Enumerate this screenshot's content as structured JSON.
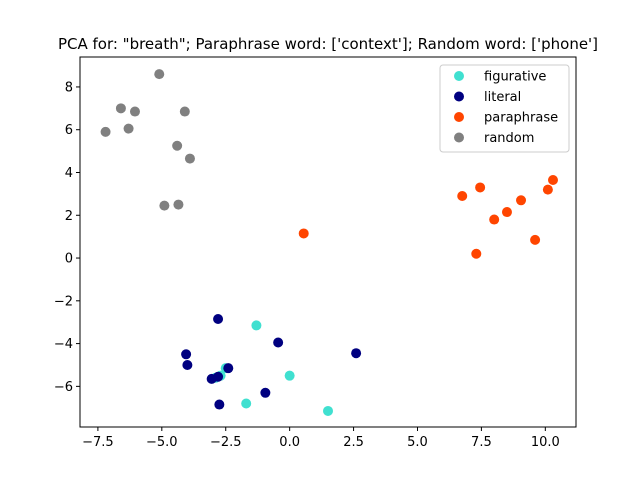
{
  "chart_data": {
    "type": "scatter",
    "title": "PCA for: \"breath\"; Paraphrase word: ['context']; Random word: ['phone']",
    "xlabel": "",
    "ylabel": "",
    "xlim": [
      -8.2,
      11.2
    ],
    "ylim": [
      -7.9,
      9.4
    ],
    "xticks": [
      -7.5,
      -5.0,
      -2.5,
      0.0,
      2.5,
      5.0,
      7.5,
      10.0
    ],
    "xtick_labels": [
      "−7.5",
      "−5.0",
      "−2.5",
      "0.0",
      "2.5",
      "5.0",
      "7.5",
      "10.0"
    ],
    "yticks": [
      -6,
      -4,
      -2,
      0,
      2,
      4,
      6,
      8
    ],
    "ytick_labels": [
      "−6",
      "−4",
      "−2",
      "0",
      "2",
      "4",
      "6",
      "8"
    ],
    "grid": false,
    "legend_position": "top-right",
    "series": [
      {
        "name": "figurative",
        "color": "#40e0d0",
        "points": [
          [
            -1.3,
            -3.15
          ],
          [
            0.0,
            -5.5
          ],
          [
            -1.7,
            -6.8
          ],
          [
            1.5,
            -7.15
          ],
          [
            -2.7,
            -5.5
          ],
          [
            -2.9,
            -5.6
          ],
          [
            -2.5,
            -5.15
          ]
        ]
      },
      {
        "name": "literal",
        "color": "#000080",
        "points": [
          [
            -2.8,
            -2.85
          ],
          [
            -0.45,
            -3.95
          ],
          [
            2.6,
            -4.45
          ],
          [
            -4.05,
            -4.5
          ],
          [
            -4.0,
            -5.0
          ],
          [
            -2.4,
            -5.15
          ],
          [
            -2.8,
            -5.55
          ],
          [
            -3.05,
            -5.65
          ],
          [
            -2.75,
            -6.85
          ],
          [
            -0.95,
            -6.3
          ]
        ]
      },
      {
        "name": "paraphrase",
        "color": "#ff4500",
        "points": [
          [
            0.55,
            1.15
          ],
          [
            6.75,
            2.9
          ],
          [
            7.45,
            3.3
          ],
          [
            7.3,
            0.2
          ],
          [
            8.0,
            1.8
          ],
          [
            8.5,
            2.15
          ],
          [
            9.05,
            2.7
          ],
          [
            9.6,
            0.85
          ],
          [
            10.1,
            3.2
          ],
          [
            10.3,
            3.65
          ]
        ]
      },
      {
        "name": "random",
        "color": "#808080",
        "points": [
          [
            -5.1,
            8.6
          ],
          [
            -6.6,
            7.0
          ],
          [
            -6.05,
            6.85
          ],
          [
            -4.1,
            6.85
          ],
          [
            -7.2,
            5.9
          ],
          [
            -6.3,
            6.05
          ],
          [
            -4.4,
            5.25
          ],
          [
            -3.9,
            4.65
          ],
          [
            -4.9,
            2.45
          ],
          [
            -4.35,
            2.5
          ]
        ]
      }
    ]
  }
}
